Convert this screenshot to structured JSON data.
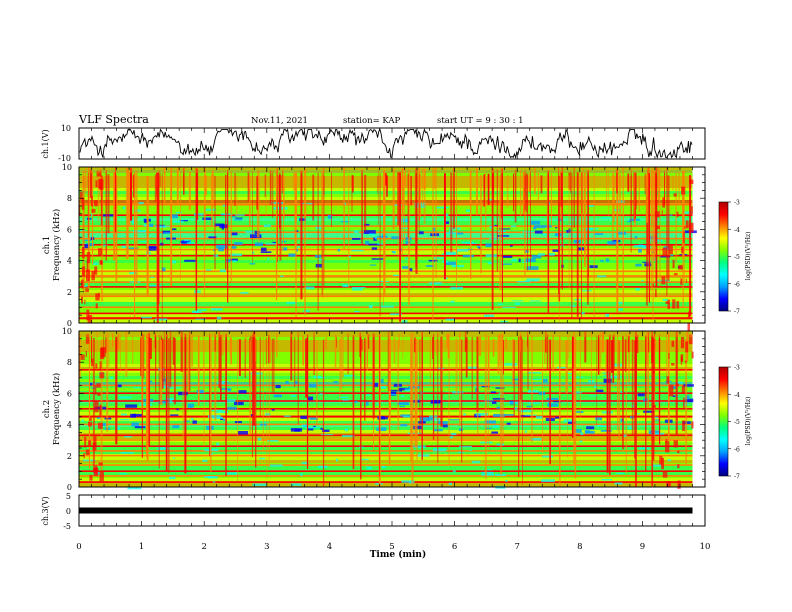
{
  "header": {
    "title": "VLF Spectra",
    "date": "Nov.11, 2021",
    "station": "station= KAP",
    "start": "start  UT =   9  : 30 : 1"
  },
  "chart_data": [
    {
      "type": "line",
      "panel": "waveform-ch1",
      "ylabel": "ch.1(V)",
      "ylim": [
        -10,
        10
      ],
      "yticks": [
        "10",
        "-10"
      ],
      "color": "#000000"
    },
    {
      "type": "heatmap",
      "panel": "spectrogram-ch1",
      "ylabel": "ch.1\nFrequency  (kHz)",
      "ylim": [
        0,
        10
      ],
      "yticks": [
        "0",
        "2",
        "4",
        "6",
        "8",
        "10"
      ],
      "colorbar": {
        "label": "log(PSD)(V²/Hz)",
        "ticks": [
          "-3",
          "-4",
          "-5",
          "-6",
          "-7"
        ],
        "range": [
          -7,
          -3
        ]
      },
      "bands_khz": [
        0.3,
        0.6,
        1.0,
        1.7,
        2.3,
        2.6,
        3.0,
        3.3,
        4.3,
        4.7,
        5.0,
        5.4,
        5.8,
        6.2,
        6.9,
        7.6
      ]
    },
    {
      "type": "heatmap",
      "panel": "spectrogram-ch2",
      "ylabel": "ch.2\nFrequency  (kHz)",
      "ylim": [
        0,
        10
      ],
      "yticks": [
        "0",
        "2",
        "4",
        "6",
        "8",
        "10"
      ],
      "colorbar": {
        "label": "log(PSD)(V²/Hz)",
        "ticks": [
          "-3",
          "-4",
          "-5",
          "-6",
          "-7"
        ],
        "range": [
          -7,
          -3
        ]
      },
      "bands_khz": [
        0.3,
        0.7,
        1.0,
        1.4,
        2.0,
        2.3,
        2.6,
        3.0,
        3.3,
        4.0,
        4.5,
        5.0,
        5.5,
        6.0,
        6.5,
        7.5
      ]
    },
    {
      "type": "line",
      "panel": "waveform-ch3",
      "ylabel": "ch.3(V)",
      "ylim": [
        -5,
        5
      ],
      "yticks": [
        "5",
        "0",
        "-5"
      ],
      "level": 0
    }
  ],
  "xaxis": {
    "label": "Time  (min)",
    "range": [
      0,
      10
    ],
    "ticks": [
      "0",
      "1",
      "2",
      "3",
      "4",
      "5",
      "6",
      "7",
      "8",
      "9",
      "10"
    ],
    "data_end": 9.8
  },
  "colors": {
    "colormap": [
      "#00007f",
      "#0000ff",
      "#00a0ff",
      "#00ffff",
      "#00ff80",
      "#7fff00",
      "#ffff00",
      "#ff8000",
      "#ff0000",
      "#b00000"
    ]
  }
}
